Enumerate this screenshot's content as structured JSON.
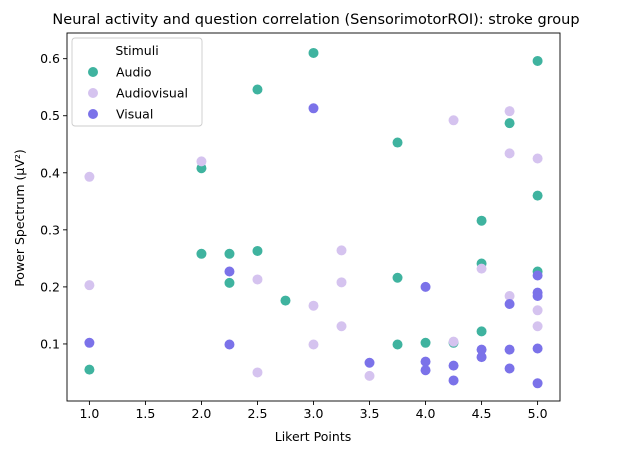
{
  "chart_data": {
    "type": "scatter",
    "title": "Neural activity and question correlation (SensorimotorROI): stroke group",
    "xlabel": "Likert Points",
    "ylabel": "Power Spectrum (µV²)",
    "xlim": [
      0.8,
      5.2
    ],
    "ylim": [
      0.0,
      0.645
    ],
    "xticks": [
      1.0,
      1.5,
      2.0,
      2.5,
      3.0,
      3.5,
      4.0,
      4.5,
      5.0
    ],
    "xtick_labels": [
      "1.0",
      "1.5",
      "2.0",
      "2.5",
      "3.0",
      "3.5",
      "4.0",
      "4.5",
      "5.0"
    ],
    "yticks": [
      0.1,
      0.2,
      0.3,
      0.4,
      0.5,
      0.6
    ],
    "ytick_labels": [
      "0.1",
      "0.2",
      "0.3",
      "0.4",
      "0.5",
      "0.6"
    ],
    "grid": false,
    "legend": {
      "title": "Stimuli",
      "placement": "top-left"
    },
    "series": [
      {
        "name": "Audio",
        "color": "#3fb39f",
        "points": [
          [
            1.0,
            0.055
          ],
          [
            2.0,
            0.408
          ],
          [
            2.0,
            0.258
          ],
          [
            2.25,
            0.258
          ],
          [
            2.25,
            0.207
          ],
          [
            2.5,
            0.546
          ],
          [
            2.5,
            0.263
          ],
          [
            2.75,
            0.176
          ],
          [
            3.0,
            0.61
          ],
          [
            3.75,
            0.453
          ],
          [
            3.75,
            0.216
          ],
          [
            3.75,
            0.099
          ],
          [
            4.0,
            0.102
          ],
          [
            4.25,
            0.102
          ],
          [
            4.5,
            0.316
          ],
          [
            4.5,
            0.241
          ],
          [
            4.5,
            0.122
          ],
          [
            4.75,
            0.487
          ],
          [
            5.0,
            0.596
          ],
          [
            5.0,
            0.36
          ],
          [
            5.0,
            0.227
          ]
        ]
      },
      {
        "name": "Audiovisual",
        "color": "#d5c3ef",
        "points": [
          [
            1.0,
            0.393
          ],
          [
            1.0,
            0.203
          ],
          [
            2.0,
            0.42
          ],
          [
            2.5,
            0.213
          ],
          [
            2.5,
            0.05
          ],
          [
            3.0,
            0.167
          ],
          [
            3.0,
            0.099
          ],
          [
            3.25,
            0.264
          ],
          [
            3.25,
            0.208
          ],
          [
            3.25,
            0.131
          ],
          [
            3.5,
            0.044
          ],
          [
            4.25,
            0.492
          ],
          [
            4.25,
            0.104
          ],
          [
            4.5,
            0.232
          ],
          [
            4.75,
            0.508
          ],
          [
            4.75,
            0.434
          ],
          [
            4.75,
            0.184
          ],
          [
            5.0,
            0.425
          ],
          [
            5.0,
            0.159
          ],
          [
            5.0,
            0.131
          ]
        ]
      },
      {
        "name": "Visual",
        "color": "#7b72e9",
        "points": [
          [
            1.0,
            0.102
          ],
          [
            2.25,
            0.227
          ],
          [
            2.25,
            0.099
          ],
          [
            3.0,
            0.513
          ],
          [
            3.5,
            0.067
          ],
          [
            4.0,
            0.2
          ],
          [
            4.0,
            0.069
          ],
          [
            4.0,
            0.054
          ],
          [
            4.25,
            0.062
          ],
          [
            4.25,
            0.036
          ],
          [
            4.5,
            0.09
          ],
          [
            4.5,
            0.077
          ],
          [
            4.75,
            0.17
          ],
          [
            4.75,
            0.09
          ],
          [
            4.75,
            0.057
          ],
          [
            5.0,
            0.22
          ],
          [
            5.0,
            0.19
          ],
          [
            5.0,
            0.184
          ],
          [
            5.0,
            0.092
          ],
          [
            5.0,
            0.031
          ]
        ]
      }
    ]
  }
}
